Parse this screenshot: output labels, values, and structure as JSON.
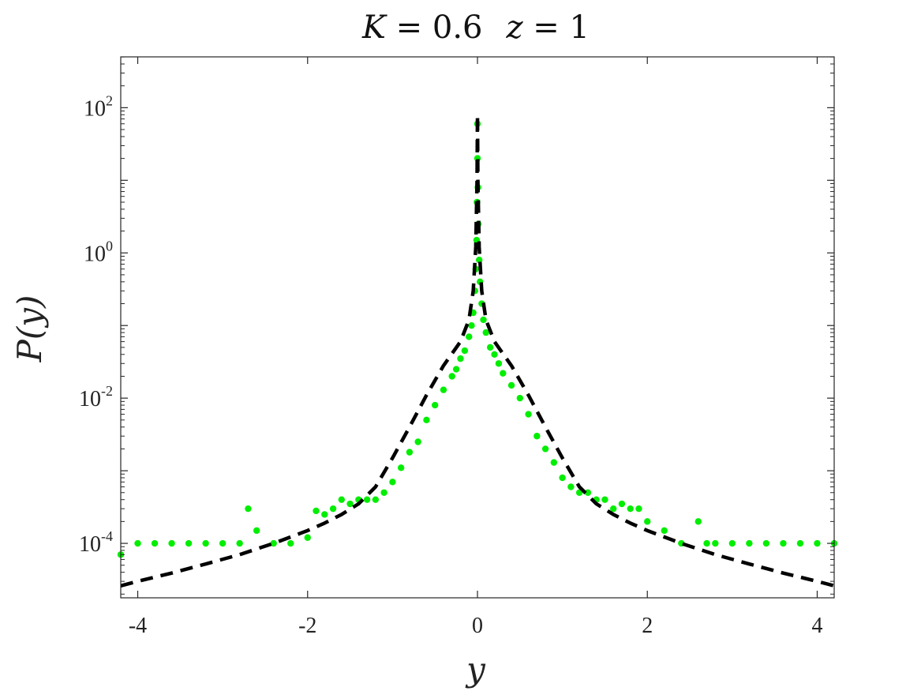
{
  "chart_data": {
    "type": "scatter",
    "title_parts": [
      "K",
      " = 0.6",
      "z",
      " = 1"
    ],
    "xlabel": "y",
    "ylabel": "P(y)",
    "xlim": [
      -4.2,
      4.2
    ],
    "ylim_log10": [
      -4.75,
      2.7
    ],
    "yscale": "log",
    "grid": false,
    "legend": "none",
    "x_ticks": [
      -4,
      -2,
      0,
      2,
      4
    ],
    "x_tick_labels": [
      "-4",
      "-2",
      "0",
      "2",
      "4"
    ],
    "y_ticks_log10": [
      -4,
      -2,
      0,
      2
    ],
    "y_tick_base": "10",
    "y_tick_exponents": [
      "-4",
      "-2",
      "0",
      "2"
    ],
    "colors": {
      "points": "#00ee00",
      "fit": "#000000",
      "axis": "#262626"
    },
    "series": [
      {
        "kind": "scatter",
        "note_points": "sampled data",
        "x": [
          0.0,
          0.0,
          0.005,
          -0.005,
          0.01,
          -0.01,
          0.02,
          -0.02,
          0.03,
          -0.03,
          0.05,
          -0.05,
          0.07,
          -0.07,
          0.1,
          -0.1,
          0.15,
          -0.15,
          0.2,
          -0.2,
          0.25,
          -0.25,
          0.3,
          -0.3,
          0.4,
          -0.4,
          0.5,
          -0.5,
          0.6,
          -0.6,
          0.7,
          -0.7,
          0.8,
          -0.8,
          0.9,
          -0.9,
          1.0,
          -1.0,
          1.1,
          -1.1,
          1.2,
          -1.2,
          1.3,
          -1.3,
          1.4,
          -1.4,
          1.5,
          -1.5,
          1.6,
          -1.6,
          1.7,
          -1.7,
          1.8,
          -1.8,
          1.9,
          -1.9,
          2.0,
          -2.0,
          2.2,
          -2.2,
          2.4,
          -2.4,
          2.6,
          -2.6,
          2.7,
          -2.7,
          2.8,
          -2.8,
          3.0,
          -3.0,
          3.2,
          -3.2,
          3.4,
          -3.4,
          3.6,
          -3.6,
          3.8,
          -3.8,
          4.0,
          -4.0,
          4.2,
          -4.2
        ],
        "y": [
          60,
          20,
          8,
          5,
          2.5,
          1.5,
          0.8,
          0.6,
          0.4,
          0.3,
          0.2,
          0.15,
          0.12,
          0.1,
          0.08,
          0.07,
          0.05,
          0.045,
          0.04,
          0.035,
          0.03,
          0.025,
          0.022,
          0.02,
          0.015,
          0.013,
          0.01,
          0.008,
          0.006,
          0.005,
          0.003,
          0.0025,
          0.002,
          0.0018,
          0.0013,
          0.0011,
          0.0008,
          0.0007,
          0.0006,
          0.0005,
          0.0005,
          0.0004,
          0.0005,
          0.0004,
          0.0004,
          0.0004,
          0.0004,
          0.00035,
          0.0003,
          0.0004,
          0.00035,
          0.0003,
          0.0003,
          0.00025,
          0.0003,
          0.00028,
          0.0002,
          0.00012,
          0.00015,
          0.0001,
          0.0001,
          0.0001,
          0.0002,
          0.00015,
          0.0001,
          0.0003,
          0.0001,
          0.0001,
          0.0001,
          0.0001,
          0.0001,
          0.0001,
          0.0001,
          0.0001,
          0.0001,
          0.0001,
          0.0001,
          0.0001,
          0.0001,
          0.0001,
          0.0001,
          7e-05
        ]
      },
      {
        "kind": "line",
        "style": "dashed",
        "x": [
          -4.2,
          -4.0,
          -3.6,
          -3.2,
          -2.8,
          -2.4,
          -2.0,
          -1.8,
          -1.6,
          -1.4,
          -1.2,
          -1.0,
          -0.8,
          -0.6,
          -0.4,
          -0.2,
          -0.1,
          -0.05,
          -0.02,
          -0.005,
          0.0,
          0.005,
          0.02,
          0.05,
          0.1,
          0.2,
          0.4,
          0.6,
          0.8,
          1.0,
          1.2,
          1.4,
          1.6,
          1.8,
          2.0,
          2.4,
          2.8,
          3.2,
          3.6,
          4.0,
          4.2
        ],
        "y": [
          2.6e-05,
          3e-05,
          3.9e-05,
          5.2e-05,
          7e-05,
          0.0001,
          0.00015,
          0.00019,
          0.00025,
          0.00035,
          0.0006,
          0.0015,
          0.004,
          0.011,
          0.028,
          0.06,
          0.12,
          0.3,
          1.2,
          10,
          80,
          10,
          1.2,
          0.3,
          0.12,
          0.06,
          0.028,
          0.011,
          0.004,
          0.0015,
          0.0006,
          0.00035,
          0.00025,
          0.00019,
          0.00015,
          0.0001,
          7e-05,
          5.2e-05,
          3.9e-05,
          3e-05,
          2.6e-05
        ]
      }
    ]
  }
}
